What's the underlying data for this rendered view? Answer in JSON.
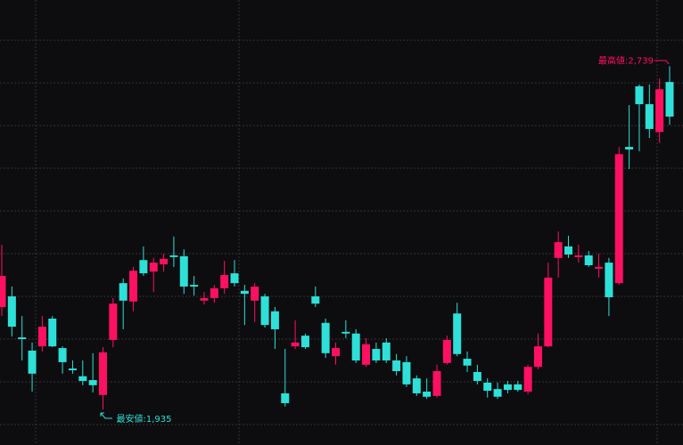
{
  "chart_data": {
    "type": "candlestick",
    "categories": [
      null,
      null,
      null,
      null,
      null,
      null,
      null,
      null,
      null,
      null,
      null,
      null,
      null,
      null,
      null,
      null,
      null,
      null,
      null,
      null,
      null,
      null,
      null,
      null,
      null,
      null,
      null,
      null,
      null,
      null,
      null,
      null,
      null,
      null,
      null,
      null,
      null,
      null,
      null,
      null,
      null,
      null,
      null,
      null,
      null,
      null,
      null,
      null,
      null,
      null,
      null,
      null,
      null,
      null,
      null,
      null,
      null,
      null,
      null,
      null,
      null,
      null,
      null,
      null,
      null,
      null,
      null
    ],
    "open": [
      2175,
      2200,
      2104,
      2073,
      2083,
      2148,
      2079,
      2031,
      2013,
      2004,
      1969,
      2098,
      2231,
      2188,
      2285,
      2258,
      2275,
      2296,
      2294,
      2227,
      2190,
      2196,
      2219,
      2254,
      2213,
      2190,
      2200,
      2165,
      1973,
      2083,
      2108,
      2200,
      2138,
      2060,
      2117,
      2113,
      2040,
      2077,
      2092,
      2050,
      2046,
      2008,
      1977,
      1967,
      2044,
      2160,
      2054,
      2023,
      1998,
      1983,
      1994,
      1994,
      1977,
      2035,
      2083,
      2290,
      2317,
      2292,
      2296,
      2265,
      2279,
      2231,
      2550,
      2692,
      2650,
      2585,
      2702
    ],
    "high": [
      2321,
      2223,
      2154,
      2092,
      2154,
      2154,
      2083,
      2050,
      2050,
      2067,
      2081,
      2196,
      2242,
      2269,
      2317,
      2290,
      2300,
      2340,
      2310,
      2248,
      2210,
      2227,
      2283,
      2285,
      2227,
      2231,
      2206,
      2175,
      2077,
      2144,
      2113,
      2223,
      2148,
      2092,
      2144,
      2123,
      2102,
      2092,
      2102,
      2065,
      2060,
      2015,
      2008,
      2040,
      2108,
      2185,
      2071,
      2040,
      2008,
      1998,
      2002,
      2002,
      2040,
      2113,
      2279,
      2352,
      2342,
      2321,
      2306,
      2300,
      2290,
      2550,
      2648,
      2696,
      2696,
      2710,
      2739
    ],
    "low": [
      2154,
      2106,
      2050,
      1977,
      2071,
      2081,
      2019,
      2019,
      1992,
      1975,
      1935,
      2081,
      2123,
      2165,
      2248,
      2210,
      2258,
      2269,
      2206,
      2202,
      2181,
      2185,
      2206,
      2223,
      2133,
      2140,
      2127,
      2077,
      1942,
      2077,
      2077,
      2175,
      2056,
      2040,
      2102,
      2044,
      2035,
      2044,
      2044,
      2015,
      1988,
      1967,
      1960,
      1963,
      2040,
      2060,
      2023,
      1994,
      1963,
      1960,
      1973,
      1977,
      1971,
      2029,
      2081,
      2244,
      2290,
      2279,
      2269,
      2244,
      2154,
      2227,
      2498,
      2540,
      2571,
      2560,
      2602
    ],
    "close": [
      2248,
      2129,
      2100,
      2019,
      2129,
      2083,
      2046,
      2027,
      2002,
      1992,
      2069,
      2183,
      2190,
      2260,
      2254,
      2279,
      2288,
      2292,
      2223,
      2223,
      2196,
      2219,
      2250,
      2231,
      2206,
      2223,
      2133,
      2123,
      1950,
      2092,
      2081,
      2183,
      2067,
      2079,
      2113,
      2050,
      2088,
      2050,
      2050,
      2025,
      1994,
      1973,
      1965,
      2025,
      2098,
      2065,
      2038,
      2002,
      1979,
      1965,
      1981,
      1981,
      2035,
      2083,
      2244,
      2327,
      2298,
      2296,
      2273,
      2269,
      2198,
      2533,
      2544,
      2650,
      2592,
      2685,
      2621
    ],
    "up_color": "#ff1060",
    "down_color": "#2ee0d8",
    "ylim": [
      1852,
      2894
    ],
    "yticks": [
      1900,
      2000,
      2100,
      2200,
      2300,
      2400,
      2500,
      2600,
      2700,
      2800
    ],
    "grid": true,
    "annotations": [
      {
        "text": "最高値:2,739",
        "color": "#ff1060"
      },
      {
        "text": "最安値:1,935",
        "color": "#2ee0d8"
      }
    ]
  }
}
